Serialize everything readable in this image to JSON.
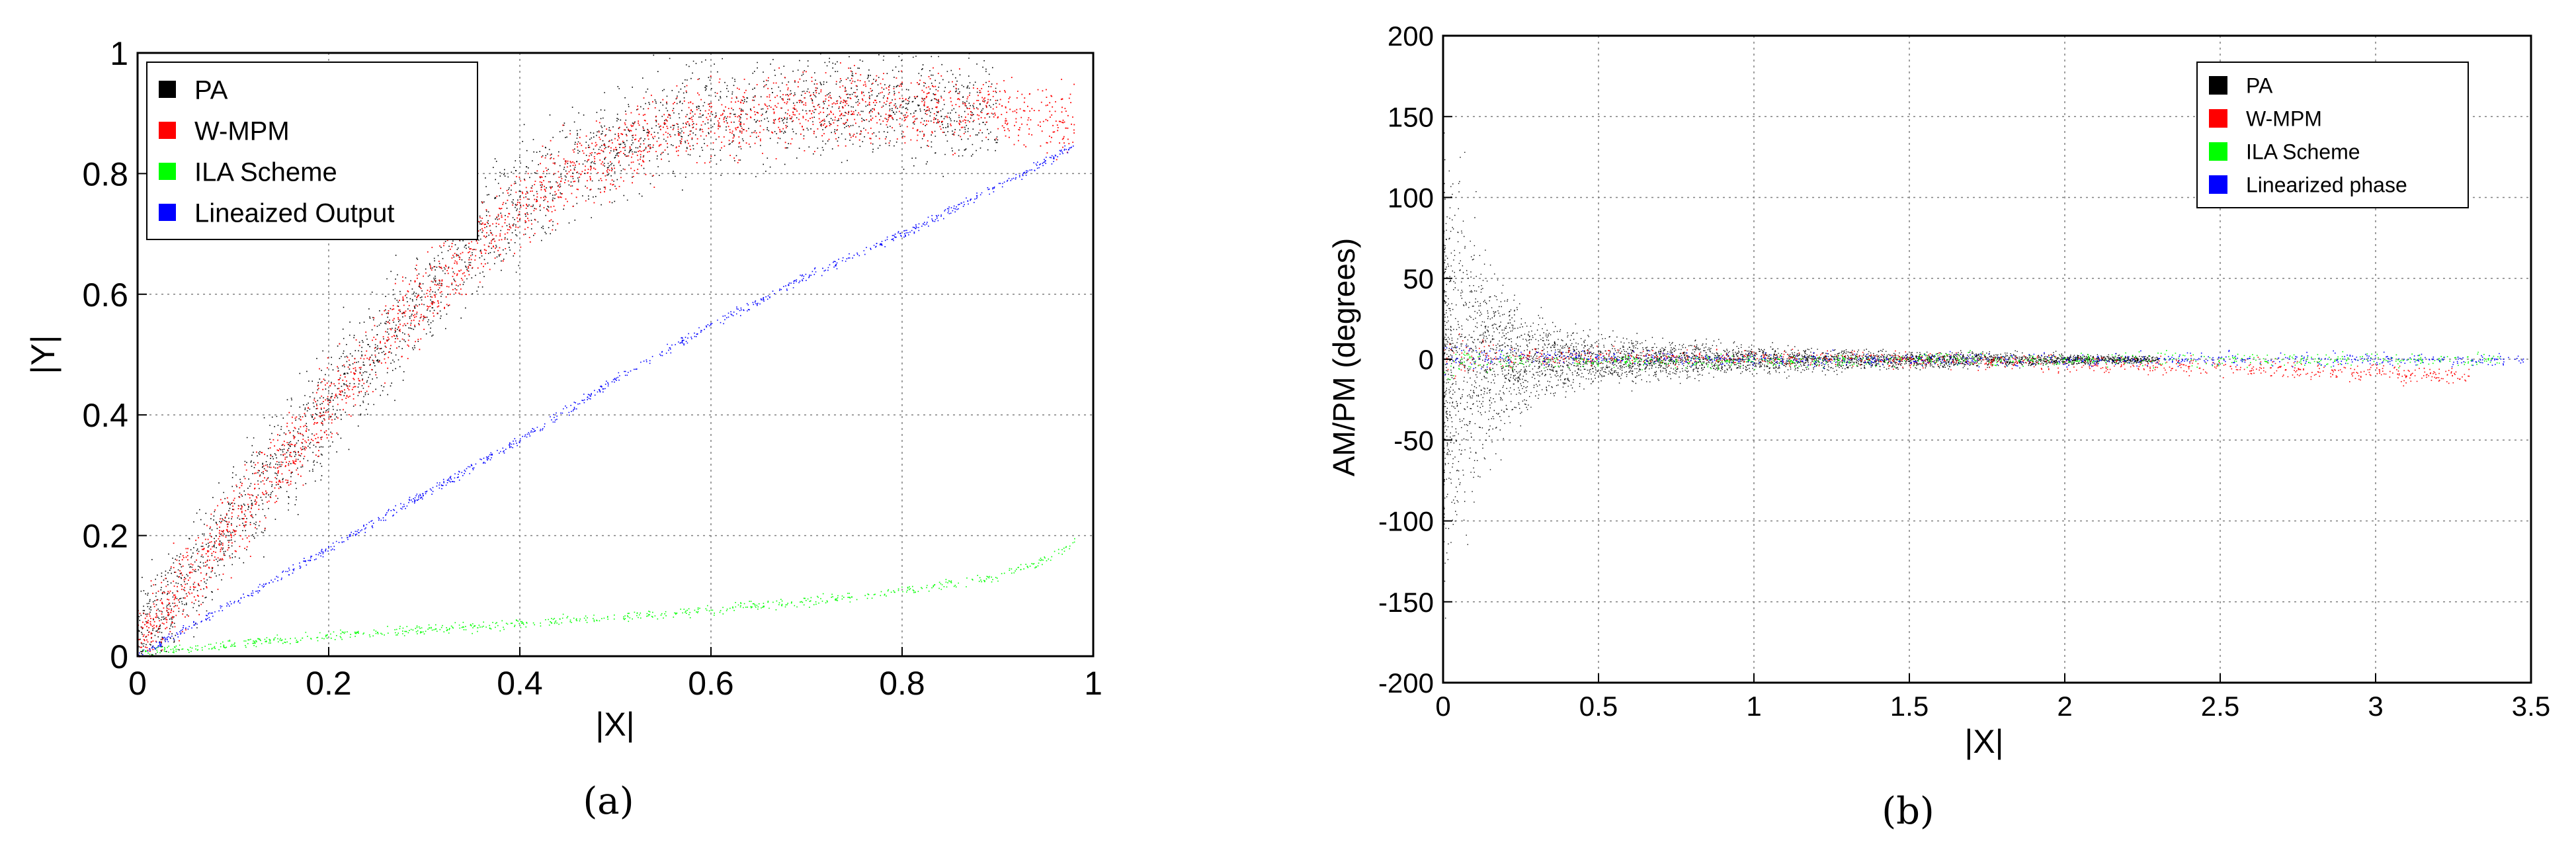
{
  "chart_data": [
    {
      "type": "scatter",
      "caption": "(a)",
      "xlabel": "|X|",
      "ylabel": "|Y|",
      "xlim": [
        0,
        1
      ],
      "ylim": [
        0,
        1
      ],
      "xticks": [
        "0",
        "0.2",
        "0.4",
        "0.6",
        "0.8",
        "1"
      ],
      "yticks": [
        "0",
        "0.2",
        "0.4",
        "0.6",
        "0.8",
        "1"
      ],
      "grid": true,
      "legend_position": "top-left",
      "series": [
        {
          "name": "PA",
          "color": "#000000",
          "x": [
            0.0,
            0.05,
            0.1,
            0.15,
            0.2,
            0.25,
            0.3,
            0.35,
            0.4,
            0.45,
            0.5,
            0.55,
            0.6,
            0.65,
            0.7,
            0.75,
            0.8,
            0.85,
            0.9
          ],
          "y": [
            0.02,
            0.12,
            0.22,
            0.32,
            0.42,
            0.51,
            0.6,
            0.68,
            0.75,
            0.81,
            0.85,
            0.88,
            0.9,
            0.91,
            0.92,
            0.92,
            0.92,
            0.91,
            0.9
          ]
        },
        {
          "name": "W-MPM",
          "color": "#ff0000",
          "x": [
            0.0,
            0.05,
            0.1,
            0.15,
            0.2,
            0.25,
            0.3,
            0.35,
            0.4,
            0.45,
            0.5,
            0.55,
            0.6,
            0.65,
            0.7,
            0.75,
            0.8,
            0.85,
            0.9,
            0.95,
            0.98
          ],
          "y": [
            0.02,
            0.12,
            0.22,
            0.32,
            0.42,
            0.51,
            0.6,
            0.68,
            0.75,
            0.8,
            0.84,
            0.87,
            0.89,
            0.9,
            0.91,
            0.91,
            0.91,
            0.91,
            0.9,
            0.89,
            0.88
          ]
        },
        {
          "name": "ILA Scheme",
          "color": "#00ff00",
          "x": [
            0.0,
            0.1,
            0.2,
            0.3,
            0.4,
            0.5,
            0.6,
            0.7,
            0.8,
            0.85,
            0.9,
            0.95,
            0.98
          ],
          "y": [
            0.005,
            0.02,
            0.035,
            0.045,
            0.055,
            0.065,
            0.078,
            0.092,
            0.11,
            0.12,
            0.135,
            0.16,
            0.19
          ]
        },
        {
          "name": "Lineaized Output",
          "color": "#0000ff",
          "x": [
            0.0,
            0.1,
            0.2,
            0.3,
            0.4,
            0.5,
            0.6,
            0.7,
            0.8,
            0.85,
            0.9,
            0.95,
            0.98
          ],
          "y": [
            0.0,
            0.09,
            0.18,
            0.27,
            0.36,
            0.46,
            0.55,
            0.63,
            0.7,
            0.74,
            0.78,
            0.82,
            0.85
          ]
        }
      ]
    },
    {
      "type": "scatter",
      "caption": "(b)",
      "xlabel": "|X|",
      "ylabel": "AM/PM (degrees)",
      "xlim": [
        0,
        3.5
      ],
      "ylim": [
        -200,
        200
      ],
      "xticks": [
        "0",
        "0.5",
        "1",
        "1.5",
        "2",
        "2.5",
        "3",
        "3.5"
      ],
      "yticks": [
        "-200",
        "-150",
        "-100",
        "-50",
        "0",
        "50",
        "100",
        "150",
        "200"
      ],
      "grid": true,
      "legend_position": "top-right",
      "series": [
        {
          "name": "PA",
          "color": "#000000",
          "x": [
            0.0,
            0.1,
            0.2,
            0.3,
            0.5,
            1.0,
            1.5,
            2.0,
            2.3
          ],
          "spread_deg": [
            180,
            120,
            60,
            35,
            20,
            12,
            8,
            5,
            3
          ],
          "y_center": [
            0,
            0,
            0,
            0,
            0,
            0,
            0,
            0,
            0
          ]
        },
        {
          "name": "W-MPM",
          "color": "#ff0000",
          "x": [
            0.0,
            0.5,
            1.0,
            1.5,
            2.0,
            2.5,
            3.0,
            3.3
          ],
          "y": [
            2,
            2,
            1,
            0,
            -2,
            -5,
            -8,
            -10
          ]
        },
        {
          "name": "ILA Scheme",
          "color": "#00ff00",
          "x": [
            0.0,
            0.5,
            1.0,
            1.5,
            2.0,
            2.5,
            3.0,
            3.4
          ],
          "y": [
            -2,
            -1,
            -1,
            0,
            0,
            0,
            0,
            0
          ]
        },
        {
          "name": "Linearized phase",
          "color": "#0000ff",
          "x": [
            0.0,
            0.5,
            1.0,
            1.5,
            2.0,
            2.5,
            3.0,
            3.5
          ],
          "y": [
            2,
            1,
            0,
            0,
            0,
            0,
            0,
            0
          ]
        }
      ]
    }
  ]
}
